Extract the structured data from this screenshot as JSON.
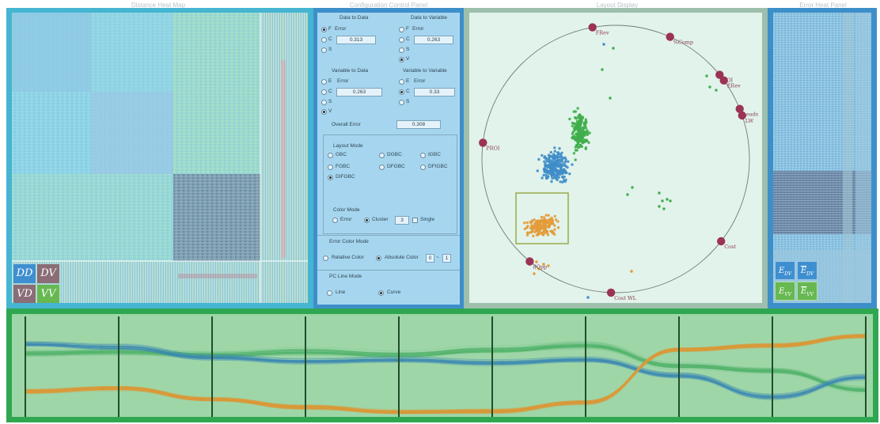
{
  "titles": {
    "heatmap": "Distance Heat Map",
    "control": "Configuration Control Panel",
    "layout": "Layout Display",
    "error": "Error Heat Panel"
  },
  "control": {
    "dd": {
      "label": "Data to Data",
      "opt_f": "F",
      "opt_c": "C",
      "opt_s": "S",
      "error_label": "Error",
      "value": "0.313"
    },
    "dv": {
      "label": "Data to Variable",
      "opt_f": "F",
      "opt_c": "C",
      "opt_s": "S",
      "opt_v": "V",
      "error_label": "Error",
      "value": "0.263"
    },
    "vd": {
      "label": "Variable to Data",
      "opt_e": "E",
      "opt_c": "C",
      "opt_s": "S",
      "opt_v": "V",
      "error_label": "Error",
      "value": "0.263"
    },
    "vv": {
      "label": "Variable to Variable",
      "opt_e": "E",
      "opt_c": "C",
      "opt_s": "S",
      "error_label": "Error",
      "value": "0.33"
    },
    "overall": {
      "label": "Overall Error",
      "value": "0.308"
    },
    "layout_mode": {
      "label": "Layout Mode",
      "options": [
        "GBC",
        "DGBC",
        "IGBC",
        "FGBC",
        "DFGBC",
        "DFIGBC",
        "DIFGBC"
      ],
      "selected": "DIFGBC"
    },
    "color_mode": {
      "label": "Color Mode",
      "error": "Error",
      "cluster": "Cluster",
      "count": "3",
      "single": "Single"
    },
    "error_color_mode": {
      "label": "Error Color Mode",
      "relative": "Relative Color",
      "absolute": "Absolute Color",
      "min": "0",
      "sep": "~",
      "max": "1"
    },
    "pc_line_mode": {
      "label": "PC Line Mode",
      "line": "Line",
      "curve": "Curve"
    }
  },
  "heatmap_tiles": {
    "dd": "DD",
    "dv": "DV",
    "vd": "VD",
    "vv": "VV"
  },
  "error_tiles": {
    "base": "E",
    "dv_sub": "DV",
    "vv_sub": "VV"
  },
  "anchors": [
    "FRev",
    "%Comp",
    "ROI",
    "ERev",
    "Leads",
    "LW",
    "Cost",
    "Cost WL",
    "dOpp",
    "PROI"
  ],
  "colors": {
    "anchor": "#9b3354",
    "cluster_blue": "#3f8dc8",
    "cluster_green": "#3fae4a",
    "cluster_orange": "#e39b3a",
    "pcp_axis": "#1f4d2b"
  }
}
